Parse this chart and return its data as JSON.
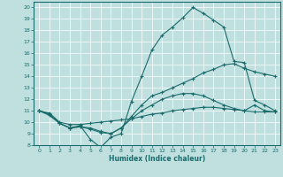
{
  "xlabel": "Humidex (Indice chaleur)",
  "xlim": [
    -0.5,
    23.5
  ],
  "ylim": [
    8,
    20.5
  ],
  "yticks": [
    8,
    9,
    10,
    11,
    12,
    13,
    14,
    15,
    16,
    17,
    18,
    19,
    20
  ],
  "xticks": [
    0,
    1,
    2,
    3,
    4,
    5,
    6,
    7,
    8,
    9,
    10,
    11,
    12,
    13,
    14,
    15,
    16,
    17,
    18,
    19,
    20,
    21,
    22,
    23
  ],
  "bg_color": "#c0e0e0",
  "line_color": "#1a6b6b",
  "grid_color": "#ffffff",
  "lines": [
    {
      "x": [
        0,
        1,
        2,
        3,
        4,
        5,
        6,
        7,
        8,
        9,
        10,
        11,
        12,
        13,
        14,
        15,
        16,
        17,
        18,
        19,
        20,
        21,
        22,
        23
      ],
      "y": [
        11.0,
        10.7,
        9.9,
        9.5,
        9.7,
        8.5,
        7.8,
        8.7,
        9.0,
        11.8,
        14.0,
        16.3,
        17.6,
        18.3,
        19.1,
        20.0,
        19.5,
        18.9,
        18.3,
        15.3,
        15.2,
        11.9,
        11.5,
        11.0
      ]
    },
    {
      "x": [
        0,
        1,
        2,
        3,
        4,
        5,
        6,
        7,
        8,
        9,
        10,
        11,
        12,
        13,
        14,
        15,
        16,
        17,
        18,
        19,
        20,
        21,
        22,
        23
      ],
      "y": [
        11.0,
        10.6,
        9.9,
        9.5,
        9.6,
        9.4,
        9.1,
        9.0,
        9.5,
        10.3,
        11.0,
        11.5,
        12.0,
        12.3,
        12.5,
        12.5,
        12.3,
        11.9,
        11.5,
        11.2,
        11.0,
        11.5,
        11.0,
        10.9
      ]
    },
    {
      "x": [
        0,
        1,
        2,
        3,
        4,
        5,
        6,
        7,
        8,
        9,
        10,
        11,
        12,
        13,
        14,
        15,
        16,
        17,
        18,
        19,
        20,
        21,
        22,
        23
      ],
      "y": [
        11.0,
        10.8,
        10.0,
        9.8,
        9.8,
        9.9,
        10.0,
        10.1,
        10.2,
        10.3,
        10.5,
        10.7,
        10.8,
        11.0,
        11.1,
        11.2,
        11.3,
        11.3,
        11.2,
        11.1,
        11.0,
        10.9,
        10.9,
        10.9
      ]
    },
    {
      "x": [
        0,
        1,
        2,
        3,
        4,
        5,
        6,
        7,
        8,
        9,
        10,
        11,
        12,
        13,
        14,
        15,
        16,
        17,
        18,
        19,
        20,
        21,
        22,
        23
      ],
      "y": [
        11.0,
        10.7,
        9.9,
        9.5,
        9.6,
        9.5,
        9.2,
        9.0,
        9.5,
        10.5,
        11.5,
        12.3,
        12.6,
        13.0,
        13.4,
        13.8,
        14.3,
        14.6,
        15.0,
        15.1,
        14.7,
        14.4,
        14.2,
        14.0
      ]
    }
  ]
}
